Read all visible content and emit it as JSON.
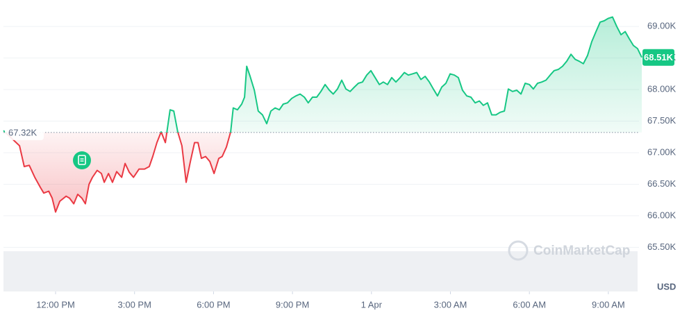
{
  "chart_data": {
    "type": "line",
    "x": [
      10.02,
      10.63,
      10.81,
      11.0,
      11.21,
      11.42,
      11.55,
      11.74,
      11.87,
      12.0,
      12.16,
      12.4,
      12.53,
      12.69,
      12.84,
      13.0,
      13.13,
      13.27,
      13.4,
      13.58,
      13.74,
      13.85,
      14.01,
      14.16,
      14.32,
      14.51,
      14.64,
      14.8,
      14.96,
      15.17,
      15.38,
      15.56,
      15.69,
      15.85,
      16.01,
      16.17,
      16.35,
      16.49,
      16.64,
      16.8,
      16.96,
      17.12,
      17.28,
      17.41,
      17.54,
      17.7,
      17.86,
      18.02,
      18.2,
      18.33,
      18.49,
      18.65,
      18.75,
      18.91,
      19.07,
      19.18,
      19.26,
      19.39,
      19.55,
      19.7,
      19.86,
      20.02,
      20.18,
      20.34,
      20.5,
      20.65,
      20.81,
      20.97,
      21.13,
      21.29,
      21.45,
      21.6,
      21.76,
      21.92,
      22.08,
      22.24,
      22.4,
      22.55,
      22.71,
      22.87,
      23.03,
      23.19,
      23.35,
      23.5,
      23.66,
      23.82,
      23.98,
      24.14,
      24.3,
      24.45,
      24.61,
      24.77,
      24.93,
      25.09,
      25.25,
      25.4,
      25.56,
      25.72,
      25.88,
      26.04,
      26.2,
      26.35,
      26.51,
      26.67,
      26.83,
      26.99,
      27.15,
      27.3,
      27.46,
      27.62,
      27.78,
      27.94,
      28.1,
      28.25,
      28.41,
      28.57,
      28.73,
      28.89,
      29.05,
      29.2,
      29.36,
      29.52,
      29.68,
      29.84,
      30.0,
      30.15,
      30.31,
      30.47,
      30.63,
      30.79,
      30.94,
      31.1,
      31.26,
      31.42,
      31.58,
      31.74,
      31.89,
      32.05,
      32.21,
      32.37,
      32.53,
      32.69,
      32.84,
      33.0,
      33.16,
      33.32,
      33.48,
      33.64,
      33.79,
      33.95,
      34.11,
      34.27
    ],
    "series": [
      {
        "color": "#16c784",
        "values": [
          67350,
          67110,
          66780,
          66800,
          66610,
          66450,
          66360,
          66390,
          66280,
          66060,
          66230,
          66310,
          66280,
          66190,
          66340,
          66280,
          66190,
          66500,
          66610,
          66720,
          66670,
          66530,
          66670,
          66530,
          66700,
          66610,
          66830,
          66690,
          66610,
          66740,
          66740,
          66780,
          66940,
          67160,
          67330,
          67160,
          67680,
          67660,
          67330,
          67110,
          66530,
          66860,
          67160,
          67160,
          66910,
          66940,
          66860,
          66670,
          66910,
          66940,
          67090,
          67330,
          67710,
          67680,
          67770,
          67880,
          68370,
          68210,
          67990,
          67660,
          67600,
          67460,
          67660,
          67710,
          67680,
          67770,
          67790,
          67860,
          67900,
          67930,
          67880,
          67790,
          67880,
          67880,
          67970,
          68080,
          67990,
          67930,
          68010,
          68150,
          68010,
          67970,
          68040,
          68100,
          68120,
          68230,
          68300,
          68190,
          68080,
          68120,
          68080,
          68190,
          68120,
          68190,
          68270,
          68230,
          68250,
          68270,
          68160,
          68210,
          68120,
          68010,
          67900,
          68040,
          68100,
          68250,
          68230,
          68190,
          67990,
          67900,
          67880,
          67790,
          67820,
          67750,
          67790,
          67600,
          67600,
          67640,
          67660,
          68010,
          67970,
          67990,
          67930,
          68100,
          68080,
          68010,
          68100,
          68120,
          68150,
          68230,
          68300,
          68320,
          68370,
          68450,
          68560,
          68480,
          68450,
          68410,
          68540,
          68760,
          68920,
          69070,
          69090,
          69130,
          69150,
          69000,
          68870,
          68920,
          68810,
          68700,
          68650,
          68510
        ]
      }
    ],
    "below_color": "#ea3943",
    "xlim": [
      10.02,
      34.27
    ],
    "xticks": [
      {
        "value": 12,
        "label": "12:00 PM"
      },
      {
        "value": 15,
        "label": "3:00 PM"
      },
      {
        "value": 18,
        "label": "6:00 PM"
      },
      {
        "value": 21,
        "label": "9:00 PM"
      },
      {
        "value": 24,
        "label": "1 Apr"
      },
      {
        "value": 27,
        "label": "3:00 AM"
      },
      {
        "value": 30,
        "label": "6:00 AM"
      },
      {
        "value": 33,
        "label": "9:00 AM"
      }
    ],
    "ylim": [
      64800,
      69420
    ],
    "yticks": [
      {
        "value": 65500,
        "label": "65.50K"
      },
      {
        "value": 66000,
        "label": "66.00K"
      },
      {
        "value": 66500,
        "label": "66.50K"
      },
      {
        "value": 67000,
        "label": "67.00K"
      },
      {
        "value": 67500,
        "label": "67.50K"
      },
      {
        "value": 68000,
        "label": "68.00K"
      },
      {
        "value": 68500,
        "label": "68.50K"
      },
      {
        "value": 69000,
        "label": "69.00K"
      }
    ],
    "baseline": {
      "value": 67320,
      "label": "67.32K"
    },
    "last_price": {
      "value": 68510,
      "label": "68.51K"
    },
    "currency": "USD",
    "watermark": "CoinMarketCap",
    "grid": true
  }
}
